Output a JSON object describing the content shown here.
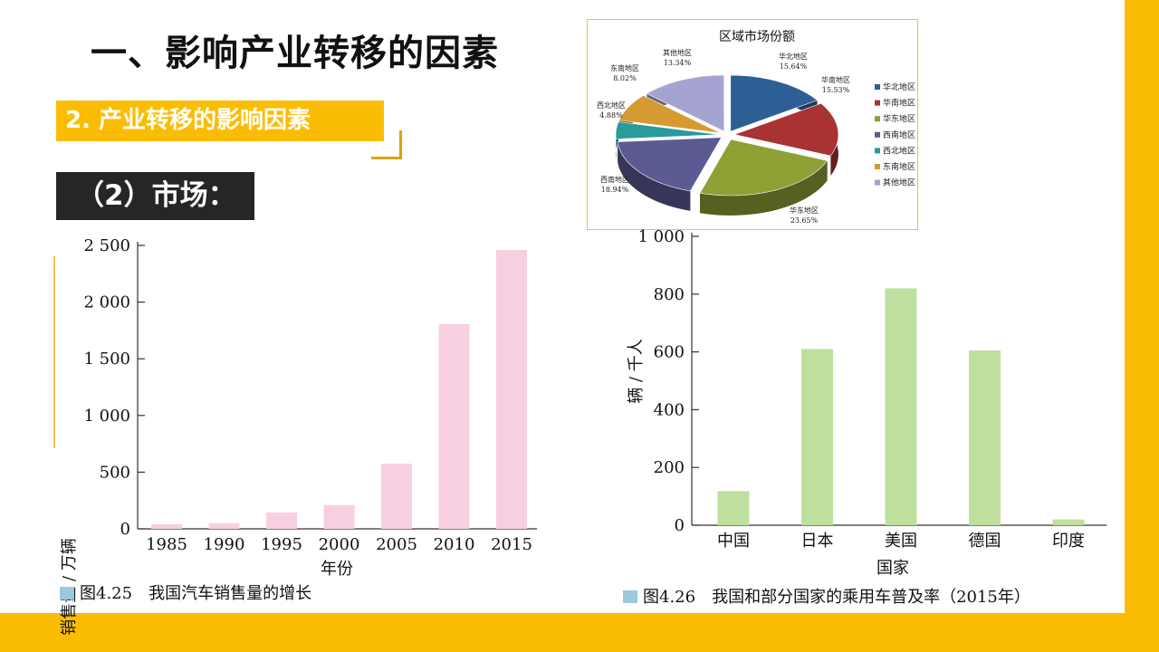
{
  "slide": {
    "title": "一、影响产业转移的因素",
    "subtitle1": "2. 产业转移的影响因素",
    "subtitle2": "（2）市场：",
    "accent_color": "#fbbd03"
  },
  "chart_data": [
    {
      "type": "pie",
      "title": "区域市场份额",
      "categories": [
        "华北地区",
        "华南地区",
        "华东地区",
        "西南地区",
        "西北地区",
        "东南地区",
        "其他地区"
      ],
      "values": [
        15.64,
        15.53,
        23.65,
        18.94,
        4.88,
        8.02,
        13.34
      ],
      "value_labels": [
        "15.64%",
        "15.53%",
        "23.65%",
        "18.94%",
        "4.88%",
        "8.02%",
        "13.34%"
      ],
      "colors": [
        "#2e5f94",
        "#a93233",
        "#8fa035",
        "#5b5a93",
        "#2a9a9a",
        "#d59a32",
        "#a5a3cf"
      ],
      "legend_position": "right"
    },
    {
      "type": "bar",
      "categories": [
        "1985",
        "1990",
        "1995",
        "2000",
        "2005",
        "2010",
        "2015"
      ],
      "values": [
        40,
        50,
        145,
        210,
        575,
        1805,
        2460
      ],
      "tick_labels": [
        "0",
        "500",
        "1 000",
        "1 500",
        "2 000",
        "2 500"
      ],
      "tick_values": [
        0,
        500,
        1000,
        1500,
        2000,
        2500
      ],
      "ylim": [
        0,
        2500
      ],
      "xlabel": "年份",
      "ylabel": "销售量 / 万辆",
      "caption": "图4.25　我国汽车销售量的增长",
      "color": "#f8cfe0"
    },
    {
      "type": "bar",
      "categories": [
        "中国",
        "日本",
        "美国",
        "德国",
        "印度"
      ],
      "values": [
        118,
        610,
        820,
        605,
        20
      ],
      "tick_labels": [
        "0",
        "200",
        "400",
        "600",
        "800",
        "1 000"
      ],
      "tick_values": [
        0,
        200,
        400,
        600,
        800,
        1000
      ],
      "ylim": [
        0,
        1000
      ],
      "xlabel": "国家",
      "ylabel": "辆 / 千人",
      "caption": "图4.26　我国和部分国家的乘用车普及率（2015年）",
      "color": "#bfdf9e"
    }
  ]
}
